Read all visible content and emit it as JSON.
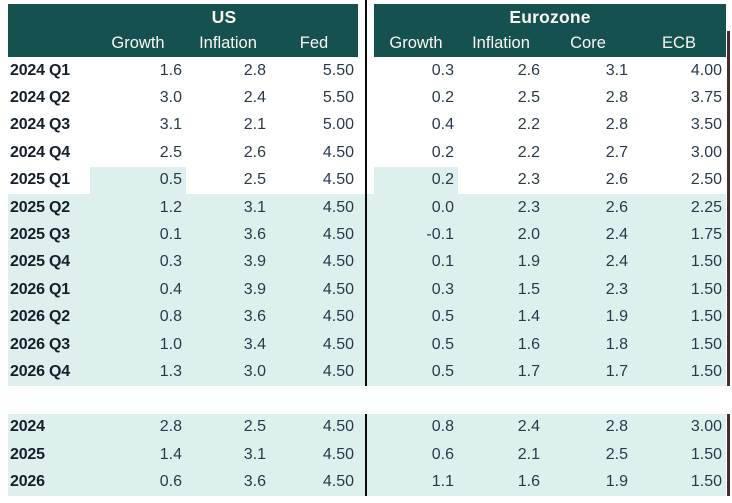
{
  "header": {
    "us_label": "US",
    "eurozone_label": "Eurozone"
  },
  "colors": {
    "header_bg": "#15514e",
    "header_text": "#fbf8f1",
    "forecast_shade": "#def0ee",
    "value_text": "#29394b",
    "label_text": "#141f2b",
    "section_divider": "#0a0a0a",
    "right_edge_line": "#4a2e2e"
  },
  "chart_data": {
    "type": "table",
    "column_groups": [
      {
        "label": "US",
        "columns": [
          "Growth",
          "Inflation",
          "Fed"
        ]
      },
      {
        "label": "Eurozone",
        "columns": [
          "Growth",
          "Inflation",
          "Core",
          "ECB"
        ]
      }
    ],
    "us_columns": [
      "Growth",
      "Inflation",
      "Fed"
    ],
    "eurozone_columns": [
      "Growth",
      "Inflation",
      "Core",
      "ECB"
    ],
    "shading_legend": "light shade marks forecast values",
    "quarterly": [
      {
        "label": "2024 Q1",
        "values": [
          "1.6",
          "2.8",
          "5.50",
          "0.3",
          "2.6",
          "3.1",
          "4.00"
        ],
        "shading": "none"
      },
      {
        "label": "2024 Q2",
        "values": [
          "3.0",
          "2.4",
          "5.50",
          "0.2",
          "2.5",
          "2.8",
          "3.75"
        ],
        "shading": "none"
      },
      {
        "label": "2024 Q3",
        "values": [
          "3.1",
          "2.1",
          "5.00",
          "0.4",
          "2.2",
          "2.8",
          "3.50"
        ],
        "shading": "none"
      },
      {
        "label": "2024 Q4",
        "values": [
          "2.5",
          "2.6",
          "4.50",
          "0.2",
          "2.2",
          "2.7",
          "3.00"
        ],
        "shading": "none"
      },
      {
        "label": "2025 Q1",
        "values": [
          "0.5",
          "2.5",
          "4.50",
          "0.2",
          "2.3",
          "2.6",
          "2.50"
        ],
        "shading": "growth_cells"
      },
      {
        "label": "2025 Q2",
        "values": [
          "1.2",
          "3.1",
          "4.50",
          "0.0",
          "2.3",
          "2.6",
          "2.25"
        ],
        "shading": "full"
      },
      {
        "label": "2025 Q3",
        "values": [
          "0.1",
          "3.6",
          "4.50",
          "-0.1",
          "2.0",
          "2.4",
          "1.75"
        ],
        "shading": "full"
      },
      {
        "label": "2025 Q4",
        "values": [
          "0.3",
          "3.9",
          "4.50",
          "0.1",
          "1.9",
          "2.4",
          "1.50"
        ],
        "shading": "full"
      },
      {
        "label": "2026 Q1",
        "values": [
          "0.4",
          "3.9",
          "4.50",
          "0.3",
          "1.5",
          "2.3",
          "1.50"
        ],
        "shading": "full"
      },
      {
        "label": "2026 Q2",
        "values": [
          "0.8",
          "3.6",
          "4.50",
          "0.5",
          "1.4",
          "1.9",
          "1.50"
        ],
        "shading": "full"
      },
      {
        "label": "2026 Q3",
        "values": [
          "1.0",
          "3.4",
          "4.50",
          "0.5",
          "1.6",
          "1.8",
          "1.50"
        ],
        "shading": "full"
      },
      {
        "label": "2026 Q4",
        "values": [
          "1.3",
          "3.0",
          "4.50",
          "0.5",
          "1.7",
          "1.7",
          "1.50"
        ],
        "shading": "full"
      }
    ],
    "annual": [
      {
        "label": "2024",
        "values": [
          "2.8",
          "2.5",
          "4.50",
          "0.8",
          "2.4",
          "2.8",
          "3.00"
        ],
        "shading": "full"
      },
      {
        "label": "2025",
        "values": [
          "1.4",
          "3.1",
          "4.50",
          "0.6",
          "2.1",
          "2.5",
          "1.50"
        ],
        "shading": "full"
      },
      {
        "label": "2026",
        "values": [
          "0.6",
          "3.6",
          "4.50",
          "1.1",
          "1.6",
          "1.9",
          "1.50"
        ],
        "shading": "full"
      }
    ]
  }
}
